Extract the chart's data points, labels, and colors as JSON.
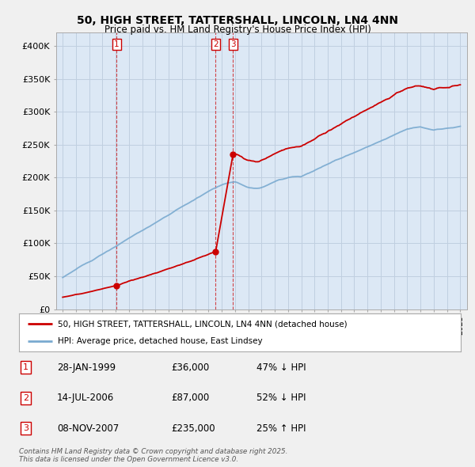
{
  "title1": "50, HIGH STREET, TATTERSHALL, LINCOLN, LN4 4NN",
  "title2": "Price paid vs. HM Land Registry's House Price Index (HPI)",
  "ylabel_ticks": [
    "£0",
    "£50K",
    "£100K",
    "£150K",
    "£200K",
    "£250K",
    "£300K",
    "£350K",
    "£400K"
  ],
  "ytick_values": [
    0,
    50000,
    100000,
    150000,
    200000,
    250000,
    300000,
    350000,
    400000
  ],
  "ylim": [
    0,
    420000
  ],
  "xlim_start": 1994.5,
  "xlim_end": 2025.5,
  "sale_dates": [
    1999.08,
    2006.54,
    2007.85
  ],
  "sale_prices": [
    36000,
    87000,
    235000
  ],
  "sale_labels": [
    "1",
    "2",
    "3"
  ],
  "red_color": "#cc0000",
  "blue_color": "#7aaad0",
  "plot_bg_color": "#dce8f5",
  "background_color": "#f0f0f0",
  "grid_color": "#c0cfe0",
  "legend_entry1": "50, HIGH STREET, TATTERSHALL, LINCOLN, LN4 4NN (detached house)",
  "legend_entry2": "HPI: Average price, detached house, East Lindsey",
  "table_rows": [
    {
      "num": "1",
      "date": "28-JAN-1999",
      "price": "£36,000",
      "hpi": "47% ↓ HPI"
    },
    {
      "num": "2",
      "date": "14-JUL-2006",
      "price": "£87,000",
      "hpi": "52% ↓ HPI"
    },
    {
      "num": "3",
      "date": "08-NOV-2007",
      "price": "£235,000",
      "hpi": "25% ↑ HPI"
    }
  ],
  "footer": "Contains HM Land Registry data © Crown copyright and database right 2025.\nThis data is licensed under the Open Government Licence v3.0."
}
